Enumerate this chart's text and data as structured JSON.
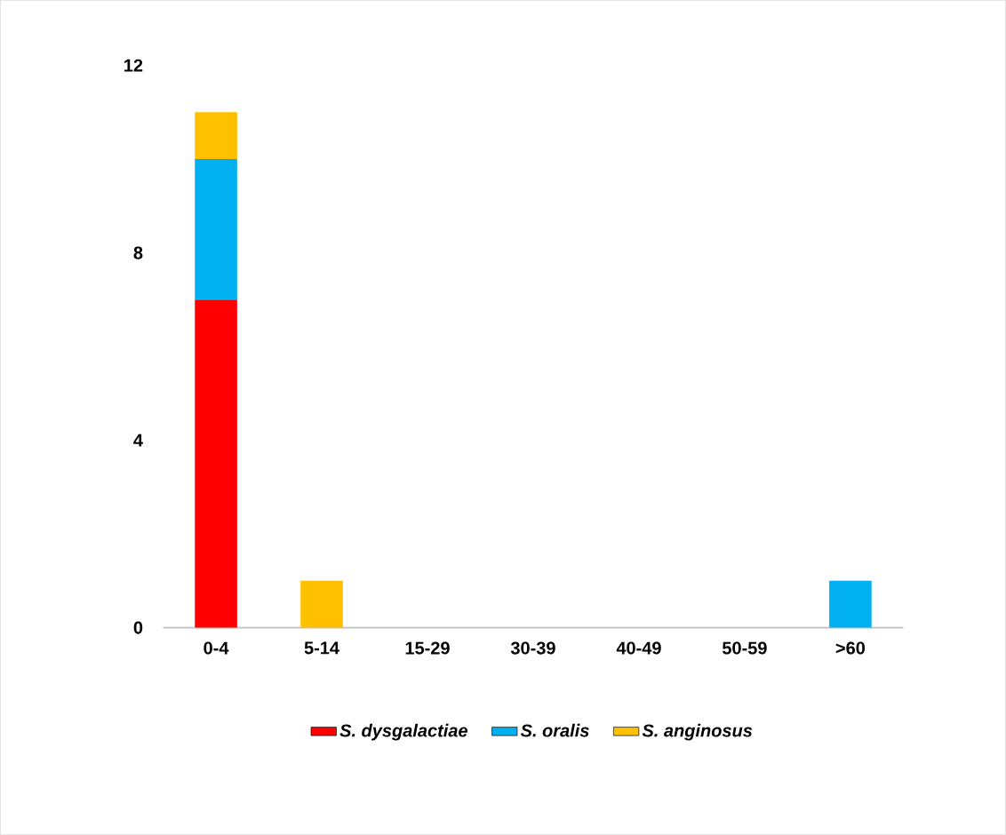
{
  "chart_data": {
    "type": "bar",
    "stacked": true,
    "categories": [
      "0-4",
      "5-14",
      "15-29",
      "30-39",
      "40-49",
      "50-59",
      ">60"
    ],
    "series": [
      {
        "name": "S. dysgalactiae",
        "color": "#ff0000",
        "values": [
          7,
          null,
          null,
          null,
          null,
          null,
          null
        ]
      },
      {
        "name": "S. oralis",
        "color": "#00b0f0",
        "values": [
          3,
          null,
          null,
          null,
          null,
          null,
          1
        ]
      },
      {
        "name": "S. anginosus",
        "color": "#ffc000",
        "values": [
          1,
          1,
          null,
          null,
          null,
          null,
          null
        ]
      }
    ],
    "ylim": [
      0,
      12
    ],
    "yticks": [
      0,
      4,
      8,
      12
    ],
    "legend": "bottom"
  }
}
